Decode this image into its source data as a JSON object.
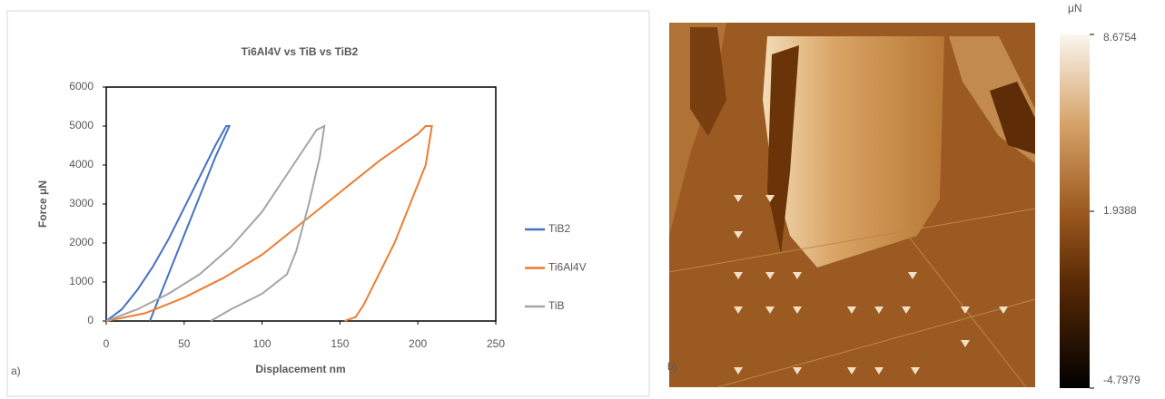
{
  "chart_data": [
    {
      "type": "line",
      "title": "Ti6Al4V vs TiB vs TiB2",
      "panel_label": "a)",
      "x_label": "Displacement nm",
      "y_label": "Force μN",
      "xlim": [
        0,
        250
      ],
      "xticks": [
        0,
        50,
        100,
        150,
        200,
        250
      ],
      "ylim": [
        0,
        6000
      ],
      "yticks": [
        0,
        1000,
        2000,
        3000,
        4000,
        5000,
        6000
      ],
      "series": [
        {
          "name": "TiB2",
          "color": "#4472c4",
          "x": [
            0,
            10,
            20,
            30,
            40,
            50,
            60,
            70,
            77,
            79,
            70,
            60,
            50,
            40,
            32,
            28
          ],
          "values": [
            0,
            300,
            800,
            1400,
            2100,
            2900,
            3700,
            4500,
            5000,
            5000,
            4200,
            3200,
            2200,
            1200,
            400,
            0
          ]
        },
        {
          "name": "Ti6Al4V",
          "color": "#ed7d31",
          "x": [
            0,
            25,
            50,
            75,
            100,
            125,
            150,
            175,
            200,
            205,
            209,
            205,
            195,
            185,
            175,
            165,
            160,
            153
          ],
          "values": [
            0,
            200,
            600,
            1100,
            1700,
            2500,
            3300,
            4100,
            4800,
            5000,
            5000,
            4000,
            3000,
            2000,
            1200,
            400,
            100,
            0
          ]
        },
        {
          "name": "TiB",
          "color": "#a5a5a5",
          "x": [
            0,
            20,
            40,
            60,
            80,
            100,
            120,
            135,
            140,
            137,
            130,
            122,
            116,
            100,
            80,
            67
          ],
          "values": [
            0,
            300,
            700,
            1200,
            1900,
            2800,
            4000,
            4900,
            5000,
            4200,
            3000,
            1800,
            1200,
            700,
            300,
            0
          ]
        }
      ]
    },
    {
      "type": "colorbar",
      "panel_label": "b)",
      "unit": "μN",
      "ylim": [
        -4.7979,
        8.6754
      ],
      "yticks": [
        -4.7979,
        1.9388,
        8.6754
      ]
    }
  ]
}
